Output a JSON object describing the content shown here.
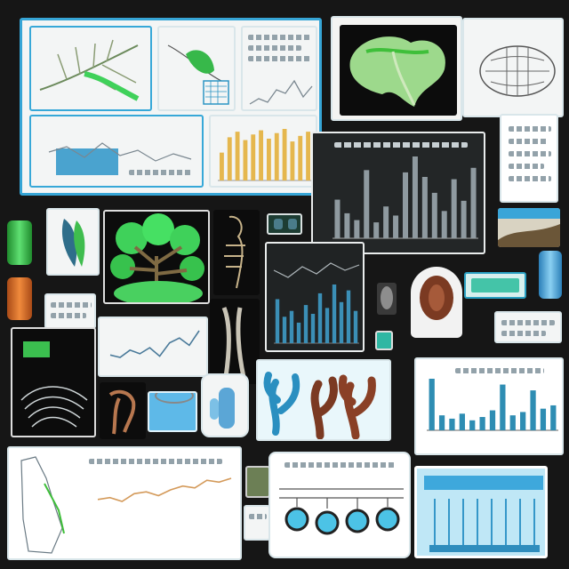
{
  "palette": {
    "background": "#161616",
    "accent_blue": "#36a5d6",
    "accent_green": "#38d34a",
    "bar_gold": "#e5b74e",
    "bar_steel": "#8f9aa0",
    "bar_teal": "#2e8db3",
    "coral_brown": "#7b3a22"
  },
  "panels": [
    {
      "id": "top-left-board",
      "icons": [
        "leaf-vein-icon",
        "bar-chart-icon",
        "line-chart-icon"
      ]
    },
    {
      "id": "leaf-photo",
      "icons": [
        "leaf-icon",
        "shell-icon"
      ]
    },
    {
      "id": "dark-bar-chart",
      "chart_data": {
        "type": "bar",
        "values": [
          34,
          22,
          16,
          60,
          14,
          28,
          20,
          58,
          72,
          54,
          40,
          24,
          52,
          33,
          62
        ]
      }
    },
    {
      "id": "tree-card",
      "icons": [
        "tree-icon"
      ]
    },
    {
      "id": "small-line-card",
      "chart_data": {
        "type": "line",
        "values": [
          20,
          18,
          24,
          21,
          26,
          19,
          30,
          34,
          28,
          40
        ]
      }
    },
    {
      "id": "coral-card",
      "icons": [
        "coral-icon"
      ]
    },
    {
      "id": "right-teal-bar",
      "chart_data": {
        "type": "bar",
        "values": [
          62,
          18,
          14,
          20,
          12,
          16,
          24,
          55,
          18,
          22,
          48,
          26,
          30
        ]
      }
    },
    {
      "id": "bottom-line-card",
      "chart_data": {
        "type": "line",
        "values": [
          22,
          24,
          20,
          28,
          30,
          26,
          32,
          36,
          34,
          42,
          40,
          44
        ]
      }
    },
    {
      "id": "bubble-card",
      "icons": [
        "cell-icon"
      ]
    },
    {
      "id": "blue-grid-card",
      "icons": [
        "grid-icon"
      ]
    }
  ]
}
